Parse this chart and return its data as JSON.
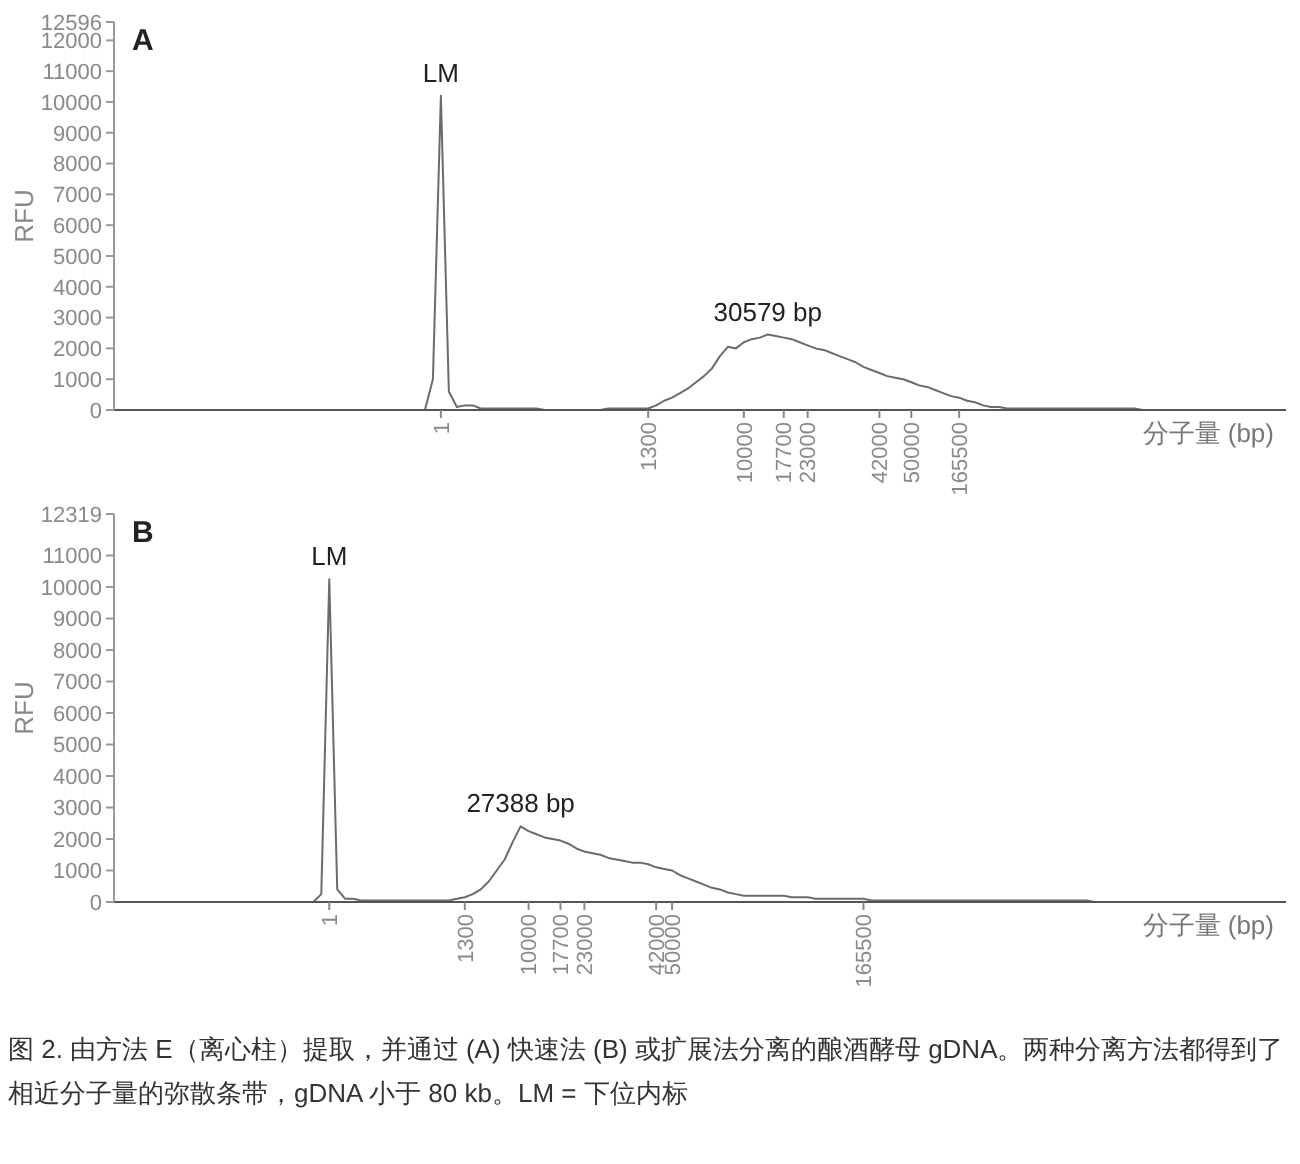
{
  "chart_data": [
    {
      "type": "line",
      "title": "A",
      "ylabel": "RFU",
      "xlabel": "分子量 (bp)",
      "color": "#6b6b6b",
      "marker": "none",
      "categories": [
        null,
        null,
        null,
        null,
        null,
        null,
        null,
        null,
        null,
        null,
        null,
        null,
        null,
        null,
        null,
        null,
        null,
        null,
        null,
        null,
        null,
        null,
        null,
        null,
        null,
        null,
        null,
        null,
        null,
        null,
        null,
        null,
        null,
        null,
        null,
        null,
        null,
        null,
        null,
        null,
        null,
        "1",
        null,
        null,
        null,
        null,
        null,
        null,
        null,
        null,
        null,
        null,
        null,
        null,
        null,
        null,
        null,
        null,
        null,
        null,
        null,
        null,
        null,
        null,
        null,
        null,
        null,
        "1300",
        null,
        null,
        null,
        null,
        null,
        null,
        null,
        null,
        null,
        null,
        null,
        "10000",
        null,
        null,
        null,
        null,
        "17700",
        null,
        null,
        "23000",
        null,
        null,
        null,
        null,
        null,
        null,
        null,
        null,
        "42000",
        null,
        null,
        null,
        "50000",
        null,
        null,
        null,
        null,
        null,
        "165500",
        null,
        null,
        null,
        null,
        null,
        null,
        null,
        null,
        null,
        null,
        null,
        null,
        null,
        null,
        null,
        null,
        null,
        null,
        null,
        null,
        null,
        null,
        null,
        null,
        null,
        null,
        null,
        null,
        null,
        null,
        null,
        null,
        null,
        null,
        null,
        null,
        null,
        null,
        null,
        null,
        null
      ],
      "values": [
        0,
        0,
        0,
        0,
        0,
        0,
        0,
        0,
        0,
        0,
        0,
        0,
        0,
        0,
        0,
        0,
        0,
        0,
        0,
        0,
        0,
        0,
        0,
        0,
        0,
        0,
        0,
        0,
        0,
        0,
        0,
        0,
        0,
        0,
        0,
        0,
        0,
        0,
        0,
        0,
        1000,
        10200,
        600,
        100,
        150,
        150,
        50,
        50,
        50,
        50,
        50,
        50,
        50,
        50,
        0,
        0,
        0,
        0,
        0,
        0,
        0,
        0,
        50,
        50,
        50,
        50,
        50,
        50,
        150,
        300,
        400,
        550,
        700,
        900,
        1100,
        1350,
        1750,
        2050,
        2000,
        2200,
        2300,
        2350,
        2450,
        2400,
        2350,
        2300,
        2200,
        2100,
        2000,
        1950,
        1850,
        1750,
        1650,
        1550,
        1400,
        1300,
        1200,
        1100,
        1050,
        1000,
        900,
        800,
        750,
        650,
        550,
        450,
        400,
        300,
        250,
        150,
        100,
        100,
        50,
        50,
        50,
        50,
        50,
        50,
        50,
        50,
        50,
        50,
        50,
        50,
        50,
        50,
        50,
        50,
        50,
        0,
        0,
        0,
        0,
        0,
        0,
        0,
        0,
        0,
        0,
        0,
        0,
        0,
        0,
        0,
        0,
        0,
        0,
        0
      ],
      "ylim": [
        0,
        12596
      ],
      "yticks": [
        0,
        1000,
        2000,
        3000,
        4000,
        5000,
        6000,
        7000,
        8000,
        9000,
        10000,
        11000,
        12000,
        12596
      ],
      "annotations": [
        {
          "text": "LM",
          "x": "1",
          "y": 10200
        },
        {
          "text": "30579 bp",
          "y": 2450
        }
      ]
    },
    {
      "type": "line",
      "title": "B",
      "ylabel": "RFU",
      "xlabel": "分子量 (bp)",
      "color": "#6b6b6b",
      "marker": "none",
      "categories": [
        null,
        null,
        null,
        null,
        null,
        null,
        null,
        null,
        null,
        null,
        null,
        null,
        null,
        null,
        null,
        null,
        null,
        null,
        null,
        null,
        null,
        null,
        null,
        null,
        null,
        null,
        null,
        "1",
        null,
        null,
        null,
        null,
        null,
        null,
        null,
        null,
        null,
        null,
        null,
        null,
        null,
        null,
        null,
        null,
        "1300",
        null,
        null,
        null,
        null,
        null,
        null,
        null,
        "10000",
        null,
        null,
        null,
        "17700",
        null,
        null,
        "23000",
        null,
        null,
        null,
        null,
        null,
        null,
        null,
        null,
        "42000",
        null,
        "50000",
        null,
        null,
        null,
        null,
        null,
        null,
        null,
        null,
        null,
        null,
        null,
        null,
        null,
        null,
        null,
        null,
        null,
        null,
        null,
        null,
        null,
        null,
        null,
        "165500",
        null,
        null,
        null,
        null,
        null,
        null,
        null,
        null,
        null,
        null,
        null,
        null,
        null,
        null,
        null,
        null,
        null,
        null,
        null,
        null,
        null,
        null,
        null,
        null,
        null,
        null,
        null,
        null,
        null,
        null,
        null,
        null,
        null,
        null,
        null,
        null,
        null,
        null,
        null,
        null,
        null,
        null,
        null,
        null,
        null,
        null,
        null,
        null,
        null,
        null,
        null,
        null,
        null
      ],
      "values": [
        0,
        0,
        0,
        0,
        0,
        0,
        0,
        0,
        0,
        0,
        0,
        0,
        0,
        0,
        0,
        0,
        0,
        0,
        0,
        0,
        0,
        0,
        0,
        0,
        0,
        0,
        250,
        10250,
        400,
        100,
        100,
        50,
        50,
        50,
        50,
        50,
        50,
        50,
        50,
        50,
        50,
        50,
        50,
        100,
        150,
        250,
        400,
        650,
        1000,
        1350,
        1900,
        2400,
        2250,
        2150,
        2050,
        2000,
        1950,
        1850,
        1700,
        1600,
        1550,
        1500,
        1400,
        1350,
        1300,
        1250,
        1250,
        1200,
        1100,
        1050,
        1000,
        850,
        750,
        650,
        550,
        450,
        400,
        300,
        250,
        200,
        200,
        200,
        200,
        200,
        200,
        150,
        150,
        150,
        100,
        100,
        100,
        100,
        100,
        100,
        100,
        50,
        50,
        50,
        50,
        50,
        50,
        50,
        50,
        50,
        50,
        50,
        50,
        50,
        50,
        50,
        50,
        50,
        50,
        50,
        50,
        50,
        50,
        50,
        50,
        50,
        50,
        50,
        50,
        0,
        0,
        0,
        0,
        0,
        0,
        0,
        0,
        0,
        0,
        0,
        0,
        0,
        0,
        0,
        0,
        0,
        0,
        0,
        0,
        0,
        0,
        0,
        0,
        0
      ],
      "ylim": [
        0,
        12319
      ],
      "yticks": [
        0,
        1000,
        2000,
        3000,
        4000,
        5000,
        6000,
        7000,
        8000,
        9000,
        10000,
        11000,
        12319
      ],
      "annotations": [
        {
          "text": "LM",
          "x": "1",
          "y": 10250
        },
        {
          "text": "27388 bp",
          "y": 2400
        },
        "图 2. 由方法 E（离心柱）提取，并通过 (A) 快速法 (B) 或扩展法分离的酿酒酵母 gDNA。两种分离方法都得到了相近分子量的弥散条带，gDNA 小于 80 kb。LM = 下位内标"
      ]
    }
  ]
}
